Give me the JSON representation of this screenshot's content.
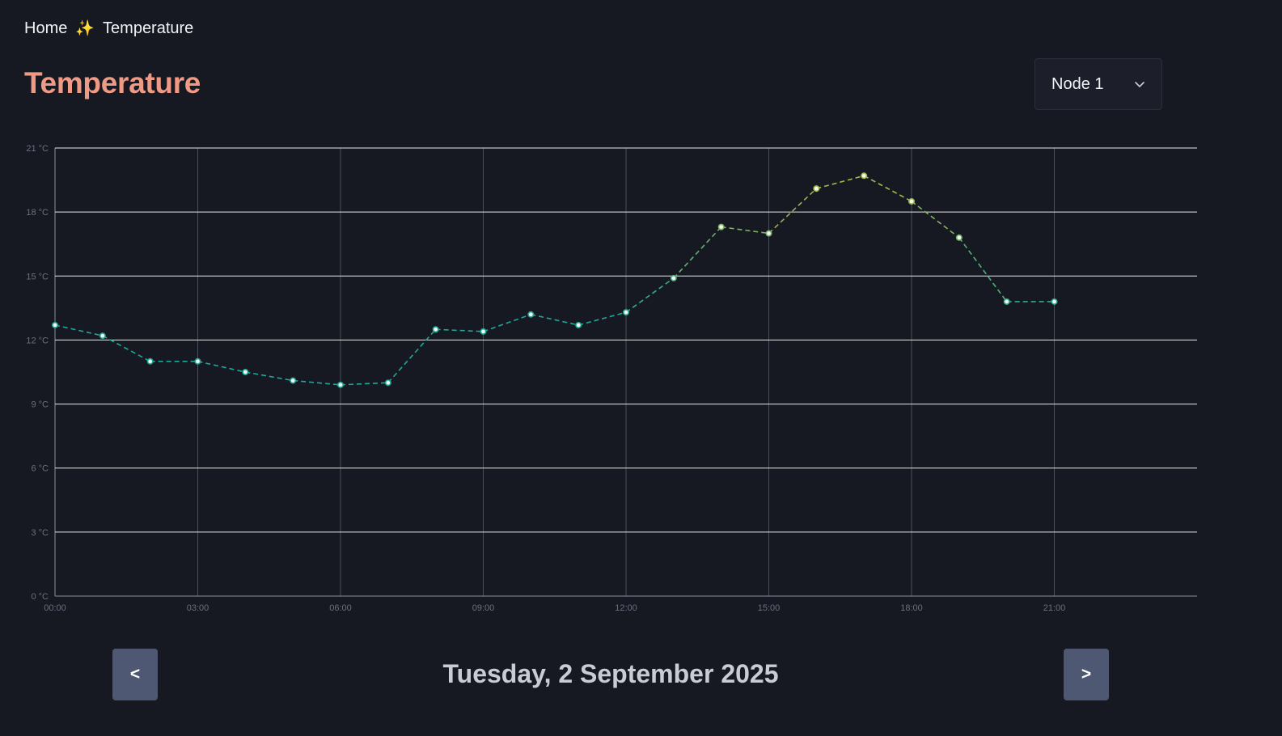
{
  "breadcrumb": {
    "home": "Home",
    "separator": "✨",
    "current": "Temperature"
  },
  "page": {
    "title": "Temperature"
  },
  "node_select": {
    "selected": "Node 1",
    "icon": "chevron-down-icon"
  },
  "navigation": {
    "prev_label": "<",
    "next_label": ">",
    "date": "Tuesday, 2 September 2025"
  },
  "colors": {
    "background": "#161922",
    "title": "#ef9a85",
    "line_cool": "#1fa89a",
    "line_warm": "#a6b84a",
    "grid_h": "#e8e8e8",
    "grid_v": "#4a4e5a",
    "tick_text": "#6b7080"
  },
  "chart_data": {
    "type": "line",
    "title": "",
    "xlabel": "",
    "ylabel": "",
    "ylim": [
      0,
      21
    ],
    "xlim": [
      "00:00",
      "24:00"
    ],
    "y_ticks": [
      "0 °C",
      "3 °C",
      "6 °C",
      "9 °C",
      "12 °C",
      "15 °C",
      "18 °C",
      "21 °C"
    ],
    "y_tick_values": [
      0,
      3,
      6,
      9,
      12,
      15,
      18,
      21
    ],
    "x_ticks": [
      "00:00",
      "03:00",
      "06:00",
      "09:00",
      "12:00",
      "15:00",
      "18:00",
      "21:00"
    ],
    "x_tick_values": [
      0,
      3,
      6,
      9,
      12,
      15,
      18,
      21
    ],
    "grid": true,
    "line_style": "dashed",
    "series": [
      {
        "x": [
          0,
          1,
          2,
          3,
          4,
          5,
          6,
          7,
          8,
          9,
          10,
          11,
          12,
          13,
          14,
          15,
          16,
          17,
          18,
          19,
          20,
          21
        ],
        "values": [
          12.7,
          12.2,
          11.0,
          11.0,
          10.5,
          10.1,
          9.9,
          10.0,
          12.5,
          12.4,
          13.2,
          12.7,
          13.3,
          14.9,
          17.3,
          17.0,
          19.1,
          19.7,
          18.5,
          16.8,
          13.8,
          13.8
        ]
      }
    ]
  }
}
